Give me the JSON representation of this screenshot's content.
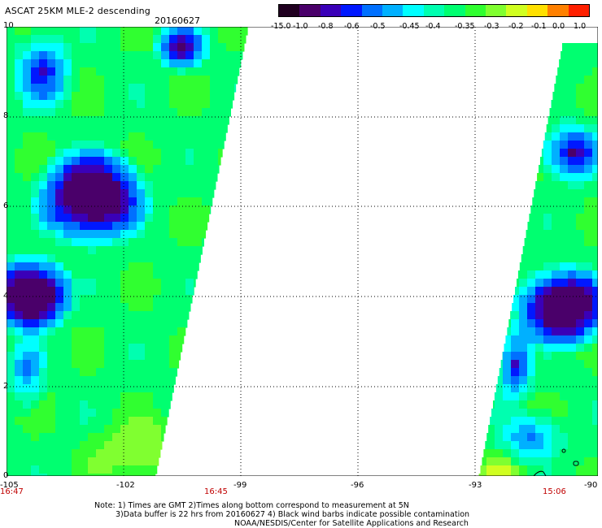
{
  "header": {
    "title": "ASCAT 25KM MLE-2 descending",
    "date": "20160627"
  },
  "colorbar": {
    "colors": [
      "#200020",
      "#4a006a",
      "#3a00b8",
      "#0018ff",
      "#0070ff",
      "#00b0ff",
      "#00ffff",
      "#00ffb0",
      "#00ff70",
      "#30ff30",
      "#80ff30",
      "#d0ff20",
      "#ffe000",
      "#ff8000",
      "#ff2000"
    ],
    "labels": [
      "-15.0",
      "-1.0",
      "-0.8",
      "-0.6",
      "-0.5",
      "-0.45",
      "-0.4",
      "-0.35",
      "-0.3",
      "-0.2",
      "-0.1",
      "0.0",
      "1.0"
    ]
  },
  "map": {
    "x_ticks": [
      "-105",
      "-102",
      "-99",
      "-96",
      "-93",
      "-90"
    ],
    "y_ticks": [
      "0",
      "2",
      "4",
      "6",
      "8",
      "10"
    ],
    "pass_times": [
      "16:47",
      "16:45",
      "15:06"
    ]
  },
  "footer": {
    "note_line1": "Note: 1) Times are GMT 2)Times along bottom correspond to measurement at 5N",
    "note_line2": "3)Data buffer is 22 hrs from 20160627 4) Black wind barbs indicate possible contamination",
    "note_line3": "NOAA/NESDIS/Center for Satellite Applications and Research"
  }
}
